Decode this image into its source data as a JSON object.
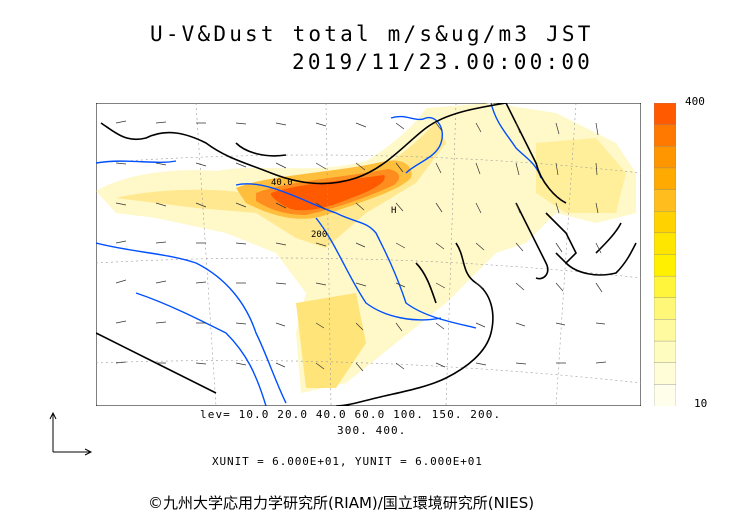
{
  "title": {
    "line1": "U-V&Dust total m/s&ug/m3 JST",
    "line2": "2019/11/23.00:00:00"
  },
  "legend": {
    "max_label": "400",
    "min_label": "10",
    "colors": [
      "#ff5a00",
      "#ff7800",
      "#ff9600",
      "#ffaa00",
      "#ffbe1e",
      "#ffd200",
      "#ffe600",
      "#fff000",
      "#fff53c",
      "#fff778",
      "#fffaa0",
      "#fffcc0",
      "#fffdd8",
      "#fffeea"
    ]
  },
  "contour_levels": {
    "line1": "lev= 10.0 20.0 40.0 60.0 100. 150. 200.",
    "line2": "300. 400."
  },
  "units": "XUNIT = 6.000E+01, YUNIT = 6.000E+01",
  "map_labels": {
    "max_marker": "H",
    "contour_label_1": "40.0",
    "contour_label_2": "200"
  },
  "colors": {
    "coastline": "#000000",
    "rivers": "#0050ff",
    "heavy_dust": "#ff5a00",
    "light_dust": "#fff5b0"
  },
  "copyright": "©九州大学応用力学研究所(RIAM)/国立環境研究所(NIES)"
}
